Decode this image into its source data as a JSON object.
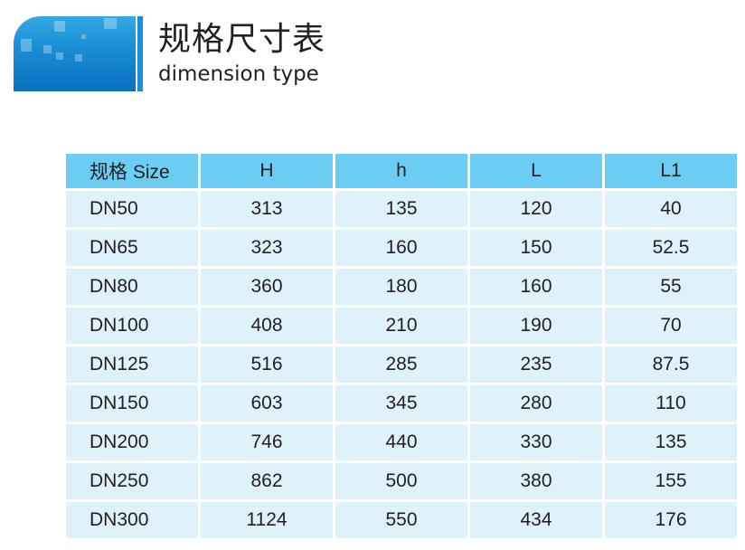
{
  "header": {
    "title_cn": "规格尺寸表",
    "title_en": "dimension type",
    "accent": "#1a8fd6"
  },
  "table": {
    "columns": [
      "规格 Size",
      "H",
      "h",
      "L",
      "L1"
    ],
    "rows": [
      [
        "DN50",
        "313",
        "135",
        "120",
        "40"
      ],
      [
        "DN65",
        "323",
        "160",
        "150",
        "52.5"
      ],
      [
        "DN80",
        "360",
        "180",
        "160",
        "55"
      ],
      [
        "DN100",
        "408",
        "210",
        "190",
        "70"
      ],
      [
        "DN125",
        "516",
        "285",
        "235",
        "87.5"
      ],
      [
        "DN150",
        "603",
        "345",
        "280",
        "110"
      ],
      [
        "DN200",
        "746",
        "440",
        "330",
        "135"
      ],
      [
        "DN250",
        "862",
        "500",
        "380",
        "155"
      ],
      [
        "DN300",
        "1124",
        "550",
        "434",
        "176"
      ]
    ],
    "header_color": "#6bcdf3",
    "row_color": "#dff1fa"
  }
}
